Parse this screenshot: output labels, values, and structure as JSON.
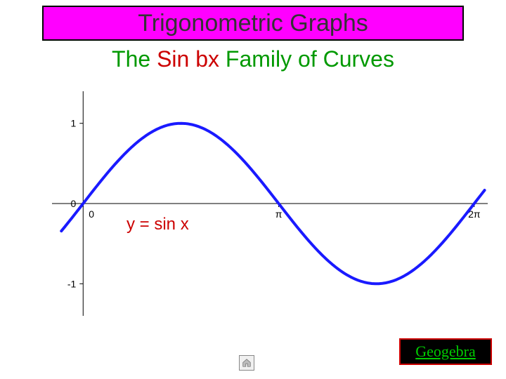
{
  "header": {
    "title": "Trigonometric Graphs",
    "bg_color": "#ff00ff",
    "border_color": "#000000",
    "text_color": "#333333",
    "fontsize": 34
  },
  "subtitle": {
    "prefix": "The ",
    "emph": "Sin bx",
    "suffix": " Family of Curves",
    "prefix_color": "#009900",
    "emph_color": "#cc0000",
    "fontsize": 32
  },
  "chart": {
    "type": "line",
    "xlim": [
      -0.5,
      6.5
    ],
    "ylim": [
      -1.4,
      1.4
    ],
    "xtick_positions": [
      0,
      3.14159,
      6.28319
    ],
    "xtick_labels": [
      "0",
      "π",
      "2π"
    ],
    "ytick_positions": [
      -1,
      0,
      1
    ],
    "ytick_labels": [
      "-1",
      "0",
      "1"
    ],
    "axis_color": "#000000",
    "tick_color": "#000000",
    "tick_fontsize": 14,
    "line_color": "#1a1aff",
    "line_width": 4,
    "background_color": "#ffffff",
    "series": {
      "expr": "sin(x)",
      "x_start": -0.35,
      "x_end": 6.45,
      "samples": 120
    }
  },
  "equation_label": {
    "text": "y = sin x",
    "color": "#cc0000",
    "fontsize": 24
  },
  "geogebra": {
    "label": "Geogebra",
    "bg_color": "#000000",
    "border_color": "#cc0000",
    "text_color": "#00cc00",
    "fontsize": 22
  },
  "icons": {
    "home": "home-icon"
  }
}
